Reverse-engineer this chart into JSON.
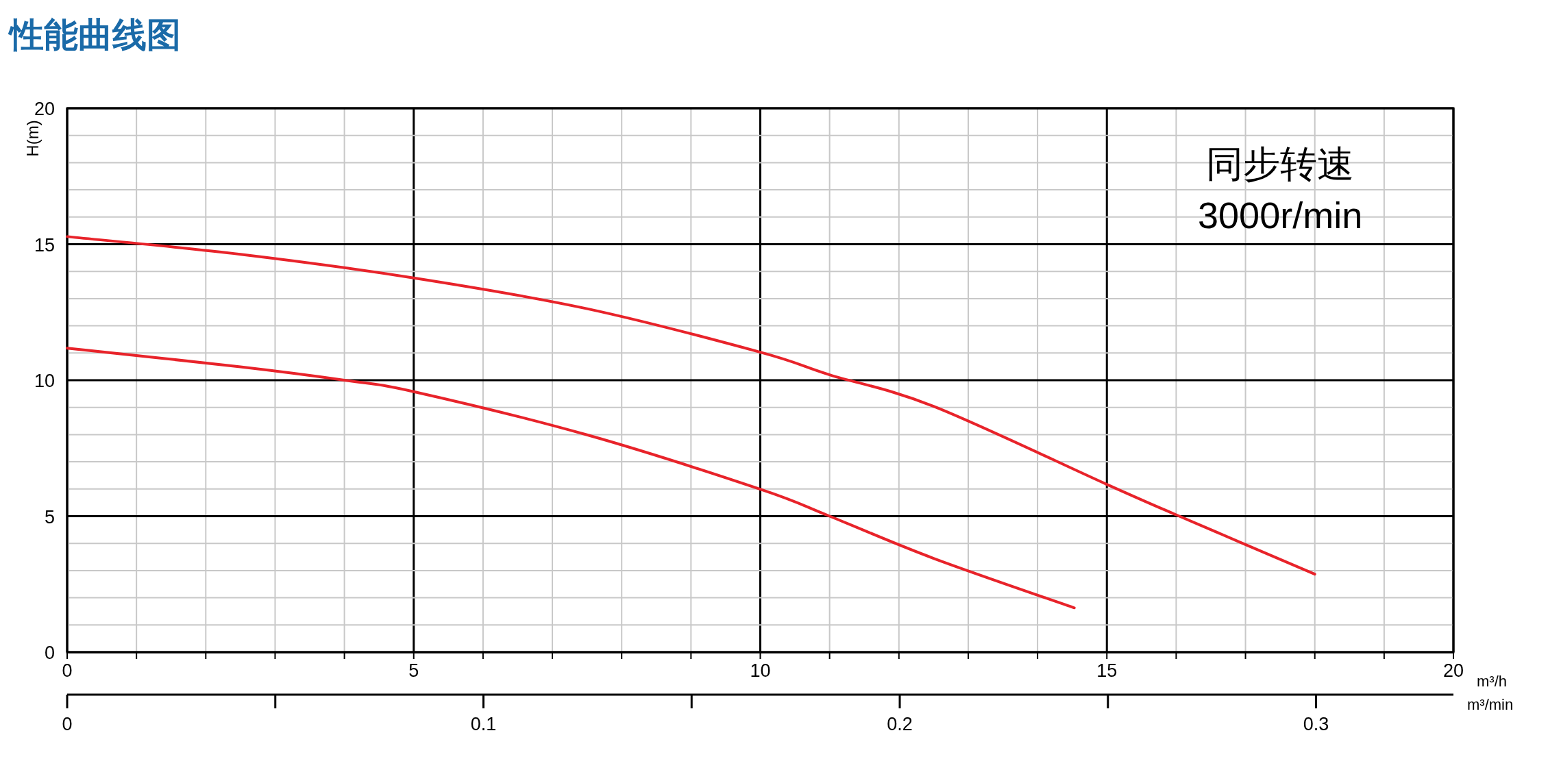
{
  "chart_data": {
    "type": "line",
    "title": "性能曲线图",
    "xlabel": "m³/h",
    "x2label": "m³/min",
    "ylabel": "H(m)",
    "xlim": [
      0,
      20
    ],
    "ylim": [
      0,
      20
    ],
    "xticks": [
      0,
      {
        "value": 1,
        "label": null
      },
      {
        "value": 2,
        "label": null
      },
      {
        "value": 3,
        "label": null
      },
      {
        "value": 4,
        "label": null
      },
      5,
      {
        "value": 6,
        "label": null
      },
      {
        "value": 7,
        "label": null
      },
      {
        "value": 8,
        "label": null
      },
      {
        "value": 9,
        "label": null
      },
      10,
      {
        "value": 11,
        "label": null
      },
      {
        "value": 12,
        "label": null
      },
      {
        "value": 13,
        "label": null
      },
      {
        "value": 14,
        "label": null
      },
      15,
      {
        "value": 16,
        "label": null
      },
      {
        "value": 17,
        "label": null
      },
      {
        "value": 18,
        "label": null
      },
      {
        "value": 19,
        "label": null
      },
      20
    ],
    "yticks": [
      0,
      {
        "value": 1,
        "label": null
      },
      {
        "value": 2,
        "label": null
      },
      {
        "value": 3,
        "label": null
      },
      {
        "value": 4,
        "label": null
      },
      5,
      {
        "value": 6,
        "label": null
      },
      {
        "value": 7,
        "label": null
      },
      {
        "value": 8,
        "label": null
      },
      {
        "value": 9,
        "label": null
      },
      10,
      {
        "value": 11,
        "label": null
      },
      {
        "value": 12,
        "label": null
      },
      {
        "value": 13,
        "label": null
      },
      {
        "value": 14,
        "label": null
      },
      15,
      {
        "value": 16,
        "label": null
      },
      {
        "value": 17,
        "label": null
      },
      {
        "value": 18,
        "label": null
      },
      {
        "value": 19,
        "label": null
      },
      20
    ],
    "x2lim": [
      0,
      0.333
    ],
    "x2ticks": [
      0,
      {
        "value": 0.05,
        "label": null
      },
      0.1,
      {
        "value": 0.15,
        "label": null
      },
      0.2,
      {
        "value": 0.25,
        "label": null
      },
      0.3
    ],
    "grid": true,
    "marker": "none",
    "line_style": "solid",
    "annotations": [
      "同步转速",
      "3000r/min"
    ],
    "series": [
      {
        "color": "#e8232a",
        "x": [
          0,
          2.5,
          5,
          7.5,
          10,
          11,
          12.5,
          15,
          16,
          18
        ],
        "values": [
          15.28,
          14.63,
          13.76,
          12.63,
          11.03,
          10.2,
          9.04,
          6.17,
          5.05,
          2.87
        ]
      },
      {
        "color": "#e8232a",
        "x": [
          0,
          2.5,
          4,
          5,
          7.5,
          10,
          11,
          12.5,
          14.53
        ],
        "values": [
          11.18,
          10.49,
          10.0,
          9.58,
          7.99,
          5.99,
          5.0,
          3.45,
          1.63
        ]
      }
    ]
  }
}
